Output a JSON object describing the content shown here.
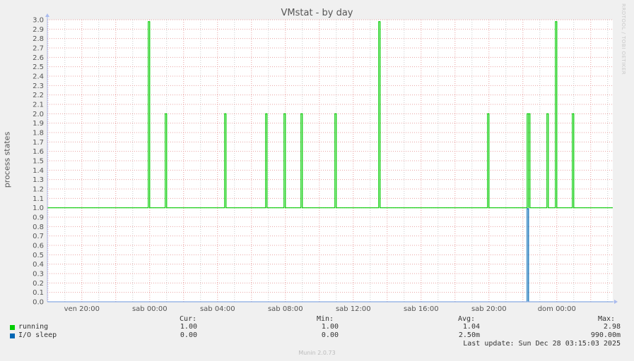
{
  "chart_data": {
    "type": "line",
    "title": "VMstat - by day",
    "ylabel": "process states",
    "ylim": [
      0,
      3.0
    ],
    "yticks": [
      "0.0",
      "0.1",
      "0.2",
      "0.3",
      "0.4",
      "0.5",
      "0.6",
      "0.7",
      "0.8",
      "0.9",
      "1.0",
      "1.1",
      "1.2",
      "1.3",
      "1.4",
      "1.5",
      "1.6",
      "1.7",
      "1.8",
      "1.9",
      "2.0",
      "2.1",
      "2.2",
      "2.3",
      "2.4",
      "2.5",
      "2.6",
      "2.7",
      "2.8",
      "2.9",
      "3.0"
    ],
    "xlim": [
      "2025-12-26T17:58",
      "2025-12-28T03:18"
    ],
    "xticks": [
      {
        "t": "2025-12-26T20:00",
        "label": "ven 20:00"
      },
      {
        "t": "2025-12-27T00:00",
        "label": "sab 00:00"
      },
      {
        "t": "2025-12-27T04:00",
        "label": "sab 04:00"
      },
      {
        "t": "2025-12-27T08:00",
        "label": "sab 08:00"
      },
      {
        "t": "2025-12-27T12:00",
        "label": "sab 12:00"
      },
      {
        "t": "2025-12-27T16:00",
        "label": "sab 16:00"
      },
      {
        "t": "2025-12-27T20:00",
        "label": "sab 20:00"
      },
      {
        "t": "2025-12-28T00:00",
        "label": "dom 00:00"
      }
    ],
    "grid": true,
    "series": [
      {
        "name": "running",
        "color": "#00cc00",
        "baseline": 1.0,
        "spikes": [
          {
            "t": "2025-12-26T23:55",
            "v": 2.98
          },
          {
            "t": "2025-12-27T00:55",
            "v": 2.0
          },
          {
            "t": "2025-12-27T04:25",
            "v": 2.0
          },
          {
            "t": "2025-12-27T06:50",
            "v": 2.0
          },
          {
            "t": "2025-12-27T07:55",
            "v": 2.0
          },
          {
            "t": "2025-12-27T08:55",
            "v": 2.0
          },
          {
            "t": "2025-12-27T10:55",
            "v": 2.0
          },
          {
            "t": "2025-12-27T13:30",
            "v": 2.98
          },
          {
            "t": "2025-12-27T19:55",
            "v": 2.0
          },
          {
            "t": "2025-12-27T22:15",
            "v": 2.0
          },
          {
            "t": "2025-12-27T22:20",
            "v": 2.0
          },
          {
            "t": "2025-12-27T23:25",
            "v": 2.0
          },
          {
            "t": "2025-12-27T23:55",
            "v": 2.98
          },
          {
            "t": "2025-12-28T00:55",
            "v": 2.0
          }
        ]
      },
      {
        "name": "I/O sleep",
        "color": "#0066b3",
        "baseline": 0.0,
        "spikes": [
          {
            "t": "2025-12-27T22:15",
            "v": 0.99
          }
        ]
      }
    ]
  },
  "legend": {
    "headers": {
      "cur": "Cur:",
      "min": "Min:",
      "avg": "Avg:",
      "max": "Max:"
    },
    "rows": [
      {
        "name": "running",
        "color": "#00cc00",
        "cur": "1.00",
        "min": "1.00",
        "avg": "1.04",
        "max": "2.98"
      },
      {
        "name": "I/O sleep",
        "color": "#0066b3",
        "cur": "0.00",
        "min": "0.00",
        "avg": "2.50m",
        "max": "990.00m"
      }
    ],
    "last_update": "Last update: Sun Dec 28 03:15:03 2025"
  },
  "watermark": "RRDTOOL / TOBI OETIKER",
  "footer": "Munin 2.0.73"
}
